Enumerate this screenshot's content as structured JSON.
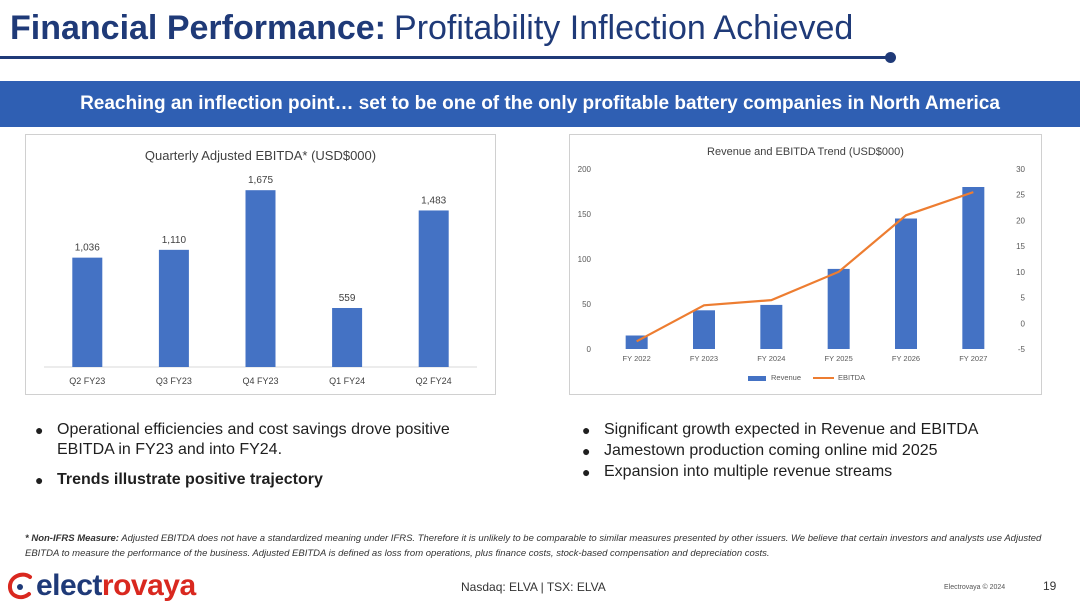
{
  "header": {
    "title_strong": "Financial Performance:",
    "title_light": "Profitability Inflection Achieved",
    "accent_color": "#1f3a78"
  },
  "banner": {
    "text": "Reaching an inflection point… set to be one of the only profitable battery companies in North America",
    "color": "#2f5fb3"
  },
  "chart_data": [
    {
      "type": "bar",
      "title": "Quarterly Adjusted EBITDA* (USD$000)",
      "categories": [
        "Q2 FY23",
        "Q3 FY23",
        "Q4 FY23",
        "Q1 FY24",
        "Q2 FY24"
      ],
      "values": [
        1036,
        1110,
        1675,
        559,
        1483
      ],
      "data_labels": [
        "1,036",
        "1,110",
        "1,675",
        "559",
        "1,483"
      ],
      "ylim": [
        0,
        1800
      ],
      "grid": false,
      "color": "#4472c4"
    },
    {
      "type": "bar",
      "title": "Revenue and EBITDA Trend (USD$000)",
      "categories": [
        "FY 2022",
        "FY 2023",
        "FY 2024",
        "FY 2025",
        "FY 2026",
        "FY 2027"
      ],
      "series": [
        {
          "name": "Revenue",
          "type": "bar",
          "axis": "left",
          "values": [
            15,
            43,
            49,
            89,
            145,
            180
          ],
          "color": "#4472c4"
        },
        {
          "name": "EBITDA",
          "type": "line",
          "axis": "right",
          "values": [
            -3.5,
            3.5,
            4.5,
            10,
            21,
            25.5
          ],
          "color": "#ed7d31"
        }
      ],
      "y_left": {
        "ylim": [
          0,
          200
        ],
        "ticks": [
          "0",
          "50",
          "100",
          "150",
          "200"
        ]
      },
      "y_right": {
        "ylim": [
          -5,
          30
        ],
        "ticks": [
          "-5",
          "0",
          "5",
          "10",
          "15",
          "20",
          "25",
          "30"
        ]
      },
      "grid": false,
      "legend": "bottom"
    }
  ],
  "bullets_left": [
    {
      "text": "Operational efficiencies and cost savings drove positive EBITDA in FY23 and into FY24."
    },
    {
      "text": "Trends illustrate positive trajectory"
    }
  ],
  "bullets_right": [
    {
      "text": "Significant growth expected in Revenue and EBITDA"
    },
    {
      "text": "Jamestown production coming online mid 2025"
    },
    {
      "text": "Expansion into multiple revenue streams"
    }
  ],
  "footnote": {
    "star": "* Non-IFRS Measure:",
    "text": "Adjusted EBITDA does not have a standardized meaning under IFRS. Therefore it is unlikely to be comparable to similar measures presented by other issuers. We believe that certain investors and analysts use Adjusted EBITDA to measure the performance of the business. Adjusted EBITDA is defined as loss from operations,  plus finance costs, stock-based compensation and depreciation costs."
  },
  "footer": {
    "logo_prefix": "elect",
    "logo_suffix": "rovaya",
    "exchange": "Nasdaq: ELVA | TSX: ELVA",
    "copyright": "Electrovaya © 2024",
    "page_number": "19"
  }
}
